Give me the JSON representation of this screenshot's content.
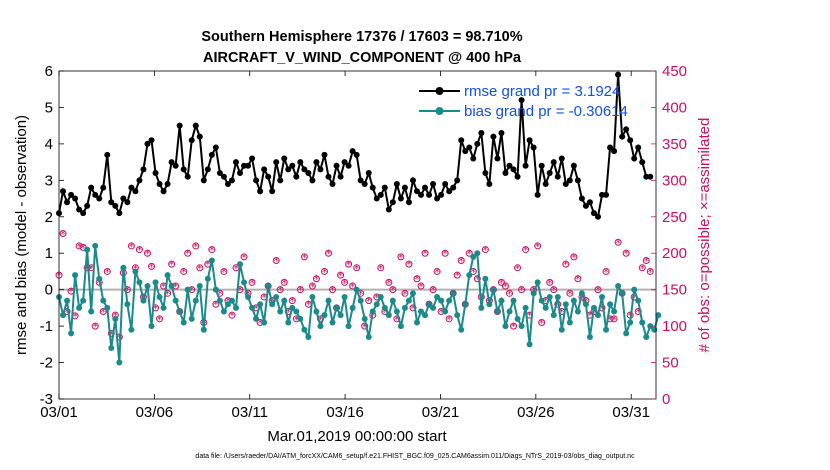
{
  "chart_data": {
    "type": "line",
    "title_line1": "Southern Hemisphere 17376 / 17603 = 98.710%",
    "title_line2": "AIRCRAFT_V_WIND_COMPONENT @ 400 hPa",
    "xlabel": "Mar.01,2019 00:00:00 start",
    "ylabel_left": "rmse and bias (model - observation)",
    "ylabel_right": "# of obs: o=possible; ×=assimilated",
    "footer": "data file: /Users/raeder/DAI/ATM_forcXX/CAM6_setup/f.e21.FHIST_BGC.f09_025.CAM6assim.011/Diags_NTrS_2019-03/obs_diag_output.nc",
    "xlim": [
      0,
      31.3
    ],
    "ylim_left": [
      -3,
      6
    ],
    "ylim_right": [
      0,
      450
    ],
    "x_ticks": [
      0,
      5,
      10,
      15,
      20,
      25,
      30
    ],
    "x_tick_labels": [
      "03/01",
      "03/06",
      "03/11",
      "03/16",
      "03/21",
      "03/26",
      "03/31"
    ],
    "y_ticks_left": [
      -3,
      -2,
      -1,
      0,
      1,
      2,
      3,
      4,
      5,
      6
    ],
    "y_tick_labels_left": [
      "-3",
      "-2",
      "-1",
      "0",
      "1",
      "2",
      "3",
      "4",
      "5",
      "6"
    ],
    "y_ticks_right": [
      0,
      50,
      100,
      150,
      200,
      250,
      300,
      350,
      400,
      450
    ],
    "y_tick_labels_right": [
      "0",
      "50",
      "100",
      "150",
      "200",
      "250",
      "300",
      "350",
      "400",
      "450"
    ],
    "colors": {
      "rmse": "#000000",
      "bias": "#1b8a8a",
      "obs": "#cc1060",
      "zero_line": "#b0b0b0",
      "legend_text": "#1150e0"
    },
    "legend": [
      {
        "label": "rmse grand pr = 3.1924",
        "series": "rmse"
      },
      {
        "label": "bias grand pr = -0.30614",
        "series": "bias"
      }
    ],
    "rmse": [
      2.1,
      2.7,
      2.4,
      2.6,
      2.5,
      2.2,
      2.1,
      2.3,
      2.8,
      2.6,
      2.5,
      2.8,
      3.7,
      2.4,
      2.3,
      2.1,
      2.5,
      2.4,
      2.8,
      2.7,
      3.0,
      3.3,
      4.0,
      4.1,
      3.2,
      2.9,
      2.7,
      2.9,
      3.5,
      3.4,
      4.5,
      3.3,
      3.1,
      4.1,
      4.5,
      4.2,
      3.0,
      3.3,
      3.7,
      3.9,
      3.2,
      3.1,
      2.9,
      3.0,
      3.5,
      3.2,
      3.4,
      3.4,
      3.6,
      3.0,
      2.7,
      3.3,
      3.1,
      2.7,
      3.5,
      3.0,
      3.6,
      3.3,
      3.4,
      3.1,
      3.5,
      3.3,
      3.2,
      3.0,
      3.5,
      3.3,
      3.7,
      3.1,
      2.9,
      3.4,
      3.1,
      3.5,
      3.4,
      3.8,
      3.7,
      3.0,
      2.9,
      3.2,
      2.8,
      2.5,
      2.6,
      2.8,
      2.2,
      2.4,
      2.9,
      2.5,
      2.8,
      2.4,
      3.0,
      2.7,
      2.6,
      2.8,
      2.6,
      2.9,
      2.5,
      2.6,
      2.9,
      2.7,
      2.8,
      3.0,
      4.1,
      3.8,
      3.9,
      3.6,
      4.0,
      4.3,
      3.2,
      2.9,
      4.2,
      3.6,
      4.3,
      3.2,
      3.4,
      3.3,
      3.1,
      5.2,
      3.4,
      4.1,
      3.9,
      2.6,
      3.4,
      2.9,
      3.2,
      3.5,
      3.1,
      3.6,
      2.9,
      3.0,
      3.4,
      3.0,
      2.5,
      2.3,
      2.4,
      2.1,
      2.0,
      2.6,
      2.6,
      3.9,
      3.8,
      5.9,
      4.2,
      4.4,
      4.1,
      3.6,
      3.9,
      3.5,
      3.1,
      3.1
    ],
    "bias": [
      -0.2,
      -0.7,
      -0.3,
      -1.2,
      0.4,
      -0.5,
      -0.3,
      1.1,
      -0.6,
      1.2,
      0.3,
      -0.3,
      -0.5,
      -1.6,
      -0.8,
      -2.0,
      0.6,
      -0.4,
      -1.1,
      0.5,
      0.2,
      -0.3,
      0.1,
      -1.0,
      0.2,
      -0.2,
      -0.5,
      0.4,
      0.1,
      -0.3,
      -0.6,
      -0.9,
      0.0,
      -0.8,
      -0.3,
      0.1,
      -1.1,
      0.3,
      0.8,
      0.0,
      -0.3,
      -0.6,
      -0.4,
      -0.3,
      -0.5,
      0.7,
      0.2,
      -0.2,
      -0.5,
      -0.8,
      -0.4,
      -0.9,
      0.1,
      -0.4,
      -0.2,
      -0.6,
      -0.3,
      -0.9,
      -0.5,
      -0.6,
      -0.8,
      -1.1,
      -1.3,
      -0.2,
      -0.6,
      -1.0,
      -0.7,
      -0.3,
      -0.9,
      -0.5,
      -0.7,
      -0.2,
      -1.0,
      -0.5,
      0.0,
      -0.3,
      -0.8,
      -1.3,
      -0.6,
      -0.4,
      -0.2,
      -0.5,
      -0.7,
      -0.3,
      -0.6,
      -1.0,
      -0.5,
      -0.3,
      -0.1,
      -0.9,
      -0.6,
      -0.7,
      -0.4,
      -0.5,
      -0.2,
      -0.3,
      -0.6,
      -0.3,
      -0.1,
      -0.7,
      -1.1,
      -0.4,
      0.4,
      0.9,
      1.0,
      -0.5,
      0.3,
      -0.4,
      0.0,
      -0.6,
      -0.3,
      -1.0,
      -0.6,
      -0.3,
      -0.8,
      -1.0,
      -0.5,
      -1.5,
      -0.1,
      0.2,
      -0.3,
      -0.5,
      -0.2,
      -0.7,
      -0.2,
      -1.1,
      -0.4,
      -0.9,
      -0.3,
      -0.6,
      -0.1,
      -0.4,
      -1.3,
      -0.5,
      -0.7,
      -0.2,
      -1.1,
      -0.4,
      -0.6,
      0.1,
      -0.1,
      -1.2,
      -0.9,
      0.0,
      -0.3,
      -0.9,
      -1.3,
      -1.0,
      -1.1,
      -0.7
    ],
    "obs_possible": [
      170,
      227,
      120,
      148,
      114,
      210,
      208,
      180,
      180,
      100,
      160,
      120,
      175,
      90,
      115,
      85,
      173,
      150,
      210,
      180,
      205,
      140,
      200,
      182,
      125,
      110,
      155,
      145,
      185,
      155,
      120,
      175,
      200,
      150,
      210,
      180,
      105,
      185,
      205,
      130,
      145,
      175,
      135,
      115,
      180,
      150,
      195,
      145,
      160,
      125,
      105,
      140,
      155,
      135,
      190,
      150,
      160,
      120,
      135,
      110,
      150,
      195,
      130,
      155,
      165,
      110,
      175,
      200,
      150,
      125,
      170,
      160,
      185,
      155,
      180,
      145,
      100,
      135,
      115,
      140,
      180,
      120,
      160,
      150,
      110,
      195,
      145,
      185,
      125,
      165,
      155,
      200,
      130,
      150,
      175,
      120,
      200,
      110,
      145,
      170,
      190,
      130,
      200,
      175,
      165,
      140,
      205,
      135,
      150,
      120,
      160,
      155,
      145,
      100,
      180,
      150,
      205,
      115,
      150,
      210,
      105,
      135,
      160,
      150,
      130,
      120,
      185,
      145,
      195,
      165,
      140,
      135,
      115,
      120,
      150,
      125,
      175,
      110,
      110,
      215,
      145,
      200,
      115,
      140,
      120,
      180,
      190,
      175
    ]
  }
}
